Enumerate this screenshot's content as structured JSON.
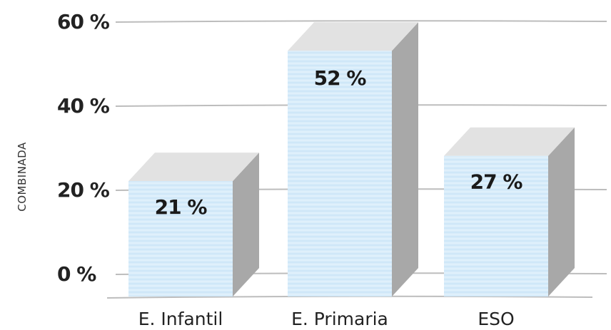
{
  "chart_data": {
    "type": "bar",
    "ylabel": "COMBINADA",
    "categories": [
      "E. Infantil",
      "E. Primaria",
      "ESO"
    ],
    "values": [
      21,
      52,
      27
    ],
    "value_labels": [
      "21 %",
      "52 %",
      "27 %"
    ],
    "ylim": [
      0,
      60
    ],
    "yticks": [
      0,
      20,
      40,
      60
    ],
    "ytick_labels": [
      "0 %",
      "20 %",
      "40 %",
      "60 %"
    ],
    "grid": true,
    "colors": {
      "front": "#d8ecfa",
      "top": "#e2e2e2",
      "side": "#a8a8a8",
      "grid": "#bdbdbd"
    }
  }
}
